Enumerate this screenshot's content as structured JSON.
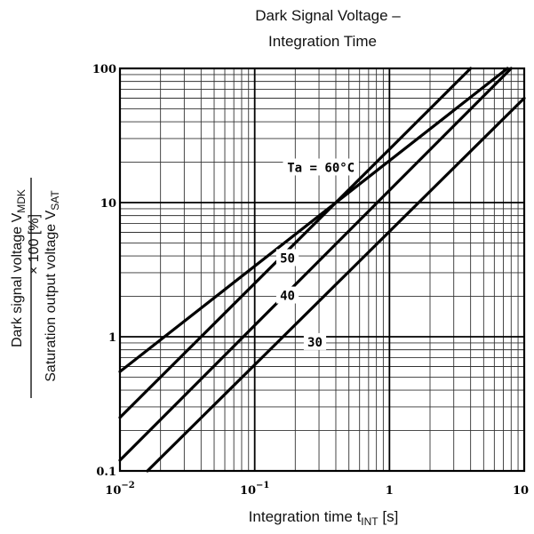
{
  "chart_data": {
    "type": "line",
    "title_lines": [
      "Dark Signal Voltage –",
      "Integration Time"
    ],
    "xlabel": "Integration time t",
    "xlabel_sub": "INT",
    "xlabel_unit": " [s]",
    "ylabel_numerator": "Dark signal voltage V",
    "ylabel_numerator_sub": "MDK",
    "ylabel_mult": "× 100 [%]",
    "ylabel_denominator": "Saturation output voltage V",
    "ylabel_denominator_sub": "SAT",
    "x_scale": "log",
    "y_scale": "log",
    "xlim": [
      0.01,
      10
    ],
    "ylim": [
      0.1,
      100
    ],
    "x_ticks": [
      {
        "value": 0.01,
        "base": "10",
        "exp": "−2"
      },
      {
        "value": 0.1,
        "base": "10",
        "exp": "−1"
      },
      {
        "value": 1,
        "base": "1",
        "exp": ""
      },
      {
        "value": 10,
        "base": "10",
        "exp": ""
      }
    ],
    "y_ticks": [
      {
        "value": 0.1,
        "label": "0.1"
      },
      {
        "value": 1,
        "label": "1"
      },
      {
        "value": 10,
        "label": "10"
      },
      {
        "value": 100,
        "label": "100"
      }
    ],
    "grid": true,
    "series": [
      {
        "name": "Ta = 60°C",
        "x": [
          0.01,
          7.5
        ],
        "y": [
          0.55,
          100
        ]
      },
      {
        "name": "50",
        "x": [
          0.01,
          4.0
        ],
        "y": [
          0.25,
          100
        ]
      },
      {
        "name": "40",
        "x": [
          0.01,
          8.0
        ],
        "y": [
          0.12,
          100
        ]
      },
      {
        "name": "30",
        "x": [
          0.016,
          10
        ],
        "y": [
          0.1,
          60
        ]
      }
    ],
    "label_positions": [
      {
        "x": 0.31,
        "y": 18
      },
      {
        "x": 0.175,
        "y": 3.8
      },
      {
        "x": 0.175,
        "y": 2.0
      },
      {
        "x": 0.28,
        "y": 0.9
      }
    ]
  }
}
